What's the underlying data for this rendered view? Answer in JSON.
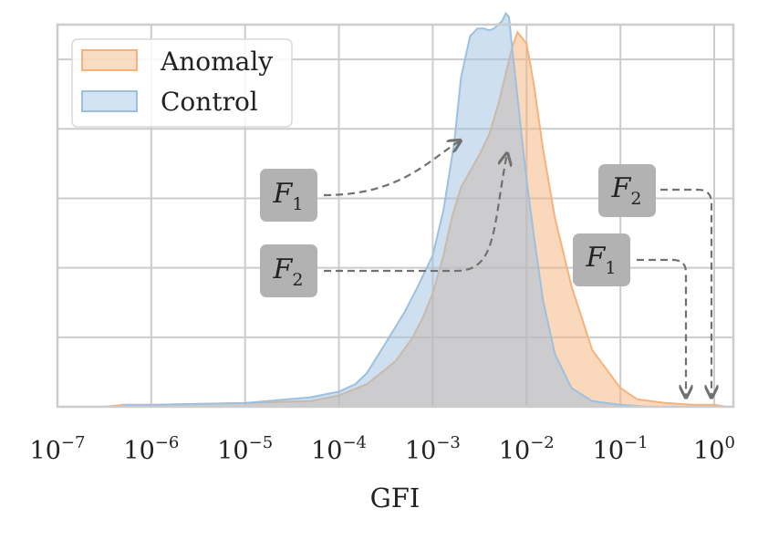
{
  "chart_data": {
    "type": "area",
    "title": "",
    "xlabel": "GFI",
    "ylabel": "",
    "x_scale": "log",
    "xlim": [
      1e-07,
      1.6
    ],
    "ylim": [
      0,
      1.0
    ],
    "grid": true,
    "legend_position": "top-left",
    "x_tick_labels": [
      {
        "value": 1e-07,
        "base": "10",
        "exp": "−7"
      },
      {
        "value": 1e-06,
        "base": "10",
        "exp": "−6"
      },
      {
        "value": 1e-05,
        "base": "10",
        "exp": "−5"
      },
      {
        "value": 0.0001,
        "base": "10",
        "exp": "−4"
      },
      {
        "value": 0.001,
        "base": "10",
        "exp": "−3"
      },
      {
        "value": 0.01,
        "base": "10",
        "exp": "−2"
      },
      {
        "value": 0.1,
        "base": "10",
        "exp": "−1"
      },
      {
        "value": 1,
        "base": "10",
        "exp": "0"
      }
    ],
    "series": [
      {
        "name": "Anomaly",
        "color": "#f5b27a",
        "x": [
          3.2e-07,
          5e-07,
          1e-06,
          1e-05,
          5e-05,
          0.0001,
          0.0002,
          0.0004,
          0.0006,
          0.0008,
          0.001,
          0.0013,
          0.0016,
          0.002,
          0.0026,
          0.0032,
          0.004,
          0.005,
          0.006,
          0.007,
          0.008,
          0.01,
          0.012,
          0.015,
          0.02,
          0.03,
          0.05,
          0.1,
          0.15,
          0.3,
          0.6,
          1.0,
          1.4
        ],
        "values": [
          0.0,
          0.005,
          0.005,
          0.01,
          0.015,
          0.03,
          0.06,
          0.12,
          0.18,
          0.24,
          0.3,
          0.4,
          0.5,
          0.58,
          0.63,
          0.67,
          0.72,
          0.8,
          0.88,
          0.95,
          0.99,
          0.96,
          0.85,
          0.68,
          0.5,
          0.32,
          0.15,
          0.05,
          0.02,
          0.01,
          0.005,
          0.005,
          0.0
        ]
      },
      {
        "name": "Control",
        "color": "#9ec0e0",
        "x": [
          5e-07,
          1e-06,
          1e-05,
          5e-05,
          0.0001,
          0.00015,
          0.0002,
          0.0003,
          0.0005,
          0.0007,
          0.001,
          0.0013,
          0.0017,
          0.002,
          0.0025,
          0.003,
          0.0035,
          0.004,
          0.0045,
          0.005,
          0.0055,
          0.006,
          0.0065,
          0.007,
          0.008,
          0.009,
          0.01,
          0.012,
          0.015,
          0.02,
          0.03,
          0.05,
          0.1,
          0.2
        ],
        "values": [
          0.005,
          0.005,
          0.01,
          0.025,
          0.04,
          0.06,
          0.09,
          0.16,
          0.25,
          0.32,
          0.4,
          0.52,
          0.7,
          0.87,
          0.98,
          1.0,
          1.0,
          0.995,
          1.0,
          1.01,
          1.02,
          1.04,
          1.03,
          0.95,
          0.82,
          0.7,
          0.6,
          0.45,
          0.28,
          0.14,
          0.05,
          0.015,
          0.005,
          0.0
        ]
      }
    ],
    "annotations": [
      {
        "label": "F",
        "sub": "1",
        "target_series": "Control"
      },
      {
        "label": "F",
        "sub": "2",
        "target_series": "Anomaly"
      },
      {
        "label": "F",
        "sub": "2",
        "target_series": "Control"
      },
      {
        "label": "F",
        "sub": "1",
        "target_series": "Anomaly"
      }
    ]
  }
}
